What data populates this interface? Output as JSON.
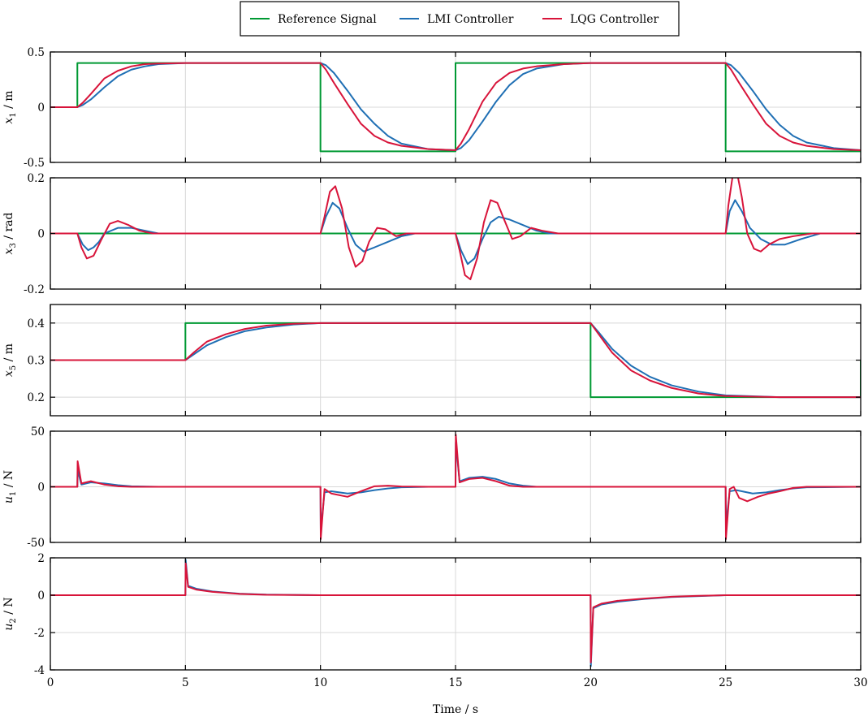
{
  "chart_data": {
    "type": "line",
    "xlabel": "Time / s",
    "xlim": [
      0,
      30
    ],
    "xticks": [
      0,
      5,
      10,
      15,
      20,
      25,
      30
    ],
    "legend": {
      "placement": "top-center",
      "entries": [
        {
          "name": "Reference Signal",
          "color": "#009933"
        },
        {
          "name": "LMI Controller",
          "color": "#1f6fb4"
        },
        {
          "name": "LQG Controller",
          "color": "#d8143a"
        }
      ]
    },
    "grid": true,
    "panels": [
      {
        "ylabel_sym": "x",
        "ylabel_sub": "1",
        "ylabel_unit": " / m",
        "ylim": [
          -0.5,
          0.5
        ],
        "yticks": [
          {
            "v": 0.5,
            "t": "0.5"
          },
          {
            "v": 0,
            "t": "0"
          },
          {
            "v": -0.5,
            "t": "-0.5"
          }
        ],
        "series": [
          {
            "name": "Reference Signal",
            "x": [
              0,
              1,
              1,
              10,
              10,
              15,
              15,
              25,
              25,
              30
            ],
            "y": [
              0,
              0,
              0.4,
              0.4,
              -0.4,
              -0.4,
              0.4,
              0.4,
              -0.4,
              -0.4
            ]
          },
          {
            "name": "LMI Controller",
            "x": [
              0,
              1,
              1.2,
              1.5,
              2,
              2.5,
              3,
              3.5,
              4,
              5,
              10,
              10.2,
              10.5,
              11,
              11.5,
              12,
              12.5,
              13,
              14,
              15,
              15.2,
              15.5,
              16,
              16.5,
              17,
              17.5,
              18,
              19,
              20,
              25,
              25.2,
              25.5,
              26,
              26.5,
              27,
              27.5,
              28,
              29,
              30
            ],
            "y": [
              0,
              0,
              0.02,
              0.07,
              0.18,
              0.28,
              0.34,
              0.37,
              0.39,
              0.4,
              0.4,
              0.38,
              0.31,
              0.15,
              -0.02,
              -0.15,
              -0.26,
              -0.33,
              -0.38,
              -0.39,
              -0.37,
              -0.3,
              -0.13,
              0.05,
              0.2,
              0.3,
              0.35,
              0.39,
              0.4,
              0.4,
              0.38,
              0.31,
              0.15,
              -0.02,
              -0.16,
              -0.26,
              -0.32,
              -0.37,
              -0.39
            ]
          },
          {
            "name": "LQG Controller",
            "x": [
              0,
              1,
              1.2,
              1.5,
              2,
              2.5,
              3,
              3.5,
              4,
              5,
              10,
              10.2,
              10.5,
              11,
              11.5,
              12,
              12.5,
              13,
              14,
              15,
              15.2,
              15.5,
              16,
              16.5,
              17,
              17.5,
              18,
              19,
              20,
              25,
              25.2,
              25.5,
              26,
              26.5,
              27,
              27.5,
              28,
              29,
              30
            ],
            "y": [
              0,
              0,
              0.04,
              0.12,
              0.26,
              0.33,
              0.37,
              0.39,
              0.395,
              0.4,
              0.4,
              0.34,
              0.22,
              0.03,
              -0.15,
              -0.26,
              -0.32,
              -0.35,
              -0.38,
              -0.39,
              -0.33,
              -0.2,
              0.05,
              0.22,
              0.31,
              0.35,
              0.37,
              0.39,
              0.4,
              0.4,
              0.34,
              0.22,
              0.03,
              -0.15,
              -0.26,
              -0.32,
              -0.35,
              -0.38,
              -0.39
            ]
          }
        ]
      },
      {
        "ylabel_sym": "x",
        "ylabel_sub": "3",
        "ylabel_unit": " / rad",
        "ylim": [
          -0.2,
          0.2
        ],
        "yticks": [
          {
            "v": 0.2,
            "t": "0.2"
          },
          {
            "v": 0,
            "t": "0"
          },
          {
            "v": -0.2,
            "t": "-0.2"
          }
        ],
        "series": [
          {
            "name": "Reference Signal",
            "x": [
              0,
              30
            ],
            "y": [
              0,
              0
            ]
          },
          {
            "name": "LMI Controller",
            "x": [
              0,
              1,
              1.2,
              1.4,
              1.6,
              1.8,
              2,
              2.5,
              3,
              3.5,
              4,
              5,
              10,
              10.2,
              10.45,
              10.7,
              11,
              11.3,
              11.6,
              12,
              12.5,
              13,
              13.5,
              14,
              15,
              15.2,
              15.45,
              15.7,
              16,
              16.3,
              16.6,
              17,
              17.5,
              18,
              18.5,
              19,
              20,
              25,
              25.15,
              25.35,
              25.6,
              25.9,
              26.3,
              26.7,
              27.2,
              27.8,
              28.5,
              30
            ],
            "y": [
              0,
              0,
              -0.04,
              -0.06,
              -0.05,
              -0.03,
              0.0,
              0.02,
              0.02,
              0.01,
              0.0,
              0,
              0,
              0.06,
              0.11,
              0.09,
              0.02,
              -0.04,
              -0.065,
              -0.05,
              -0.03,
              -0.01,
              0.0,
              0.0,
              0,
              -0.06,
              -0.11,
              -0.09,
              -0.02,
              0.04,
              0.06,
              0.05,
              0.03,
              0.01,
              0.0,
              0.0,
              0,
              0,
              0.08,
              0.12,
              0.08,
              0.02,
              -0.02,
              -0.04,
              -0.04,
              -0.02,
              0.0,
              0
            ]
          },
          {
            "name": "LQG Controller",
            "x": [
              0,
              1,
              1.15,
              1.35,
              1.6,
              1.9,
              2.2,
              2.5,
              2.9,
              3.3,
              3.8,
              4.5,
              5,
              10,
              10.15,
              10.35,
              10.55,
              10.8,
              11.05,
              11.3,
              11.55,
              11.8,
              12.1,
              12.4,
              12.8,
              13.2,
              13.8,
              15,
              15.15,
              15.35,
              15.55,
              15.8,
              16.05,
              16.3,
              16.55,
              16.8,
              17.1,
              17.4,
              17.8,
              18.2,
              18.8,
              20,
              25,
              25.1,
              25.25,
              25.42,
              25.6,
              25.8,
              26.05,
              26.3,
              26.6,
              27,
              27.5,
              28.2,
              30
            ],
            "y": [
              0,
              0,
              -0.05,
              -0.09,
              -0.08,
              -0.02,
              0.035,
              0.045,
              0.03,
              0.01,
              0.0,
              0,
              0,
              0,
              0.06,
              0.15,
              0.17,
              0.09,
              -0.05,
              -0.12,
              -0.1,
              -0.03,
              0.02,
              0.015,
              -0.01,
              0.0,
              0.0,
              0,
              -0.06,
              -0.15,
              -0.165,
              -0.09,
              0.04,
              0.12,
              0.11,
              0.05,
              -0.02,
              -0.01,
              0.02,
              0.01,
              0.0,
              0,
              0,
              0.1,
              0.2,
              0.22,
              0.13,
              0.0,
              -0.055,
              -0.065,
              -0.04,
              -0.02,
              -0.01,
              0.0,
              0
            ]
          }
        ]
      },
      {
        "ylabel_sym": "x",
        "ylabel_sub": "5",
        "ylabel_unit": " / m",
        "ylim": [
          0.15,
          0.45
        ],
        "yticks": [
          {
            "v": 0.4,
            "t": "0.4"
          },
          {
            "v": 0.3,
            "t": "0.3"
          },
          {
            "v": 0.2,
            "t": "0.2"
          }
        ],
        "series": [
          {
            "name": "Reference Signal",
            "x": [
              0,
              5,
              5,
              20,
              20,
              30,
              30
            ],
            "y": [
              0.3,
              0.3,
              0.4,
              0.4,
              0.2,
              0.2,
              0.3
            ]
          },
          {
            "name": "LMI Controller",
            "x": [
              0,
              5,
              5.3,
              5.8,
              6.5,
              7.2,
              8,
              9,
              10,
              15,
              20,
              20.3,
              20.8,
              21.5,
              22.2,
              23,
              24,
              25,
              27,
              30
            ],
            "y": [
              0.3,
              0.3,
              0.315,
              0.34,
              0.362,
              0.378,
              0.388,
              0.396,
              0.4,
              0.4,
              0.4,
              0.375,
              0.33,
              0.285,
              0.255,
              0.232,
              0.215,
              0.205,
              0.2,
              0.2
            ]
          },
          {
            "name": "LQG Controller",
            "x": [
              0,
              5,
              5.3,
              5.8,
              6.5,
              7.2,
              8,
              9,
              10,
              15,
              20,
              20.3,
              20.8,
              21.5,
              22.2,
              23,
              24,
              25,
              27,
              30
            ],
            "y": [
              0.3,
              0.3,
              0.32,
              0.35,
              0.37,
              0.384,
              0.393,
              0.398,
              0.4,
              0.4,
              0.4,
              0.37,
              0.32,
              0.272,
              0.245,
              0.225,
              0.21,
              0.203,
              0.2,
              0.2
            ]
          }
        ]
      },
      {
        "ylabel_sym": "u",
        "ylabel_sub": "1",
        "ylabel_unit": " / N",
        "ylim": [
          -50,
          50
        ],
        "yticks": [
          {
            "v": 50,
            "t": "50"
          },
          {
            "v": 0,
            "t": "0"
          },
          {
            "v": -50,
            "t": "-50"
          }
        ],
        "series": [
          {
            "name": "LMI Controller",
            "x": [
              0,
              1,
              1.01,
              1.15,
              1.5,
              2,
              2.5,
              3,
              4,
              10,
              10.01,
              10.15,
              10.4,
              11,
              11.5,
              12,
              12.5,
              13,
              14,
              15,
              15.01,
              15.15,
              15.5,
              16,
              16.5,
              17,
              17.5,
              18,
              20,
              25,
              25.01,
              25.15,
              25.4,
              26,
              26.5,
              27,
              27.5,
              28,
              30
            ],
            "y": [
              0,
              0,
              15,
              2,
              4,
              3,
              1.5,
              0.5,
              0,
              0,
              -40,
              -5,
              -4,
              -6,
              -5,
              -3,
              -1.5,
              -0.5,
              0,
              0,
              40,
              5,
              8,
              9,
              7,
              3,
              1,
              0,
              0,
              0,
              -35,
              -4,
              -3,
              -6,
              -5,
              -3,
              -1.5,
              -0.5,
              0
            ]
          },
          {
            "name": "LQG Controller",
            "x": [
              0,
              1,
              1.01,
              1.15,
              1.5,
              2,
              2.5,
              3,
              4,
              10,
              10.01,
              10.15,
              10.4,
              11,
              11.5,
              12,
              12.5,
              13,
              14,
              15,
              15.01,
              15.15,
              15.5,
              16,
              16.5,
              17,
              17.5,
              18,
              20,
              25,
              25.01,
              25.15,
              25.3,
              25.5,
              25.8,
              26.2,
              26.6,
              27,
              27.5,
              28,
              30
            ],
            "y": [
              0,
              0,
              23,
              3,
              5,
              2,
              0.5,
              0,
              0,
              0,
              -47,
              -2,
              -6,
              -9,
              -4,
              0.5,
              1,
              0.3,
              0,
              0,
              47,
              4,
              7,
              8,
              5,
              1,
              0,
              0,
              0,
              0,
              -47,
              -2,
              0,
              -10,
              -13,
              -9,
              -6,
              -4,
              -1,
              0,
              0
            ]
          }
        ]
      },
      {
        "ylabel_sym": "u",
        "ylabel_sub": "2",
        "ylabel_unit": " / N",
        "ylim": [
          -4,
          2
        ],
        "yticks": [
          {
            "v": 2,
            "t": "2"
          },
          {
            "v": 0,
            "t": "0"
          },
          {
            "v": -2,
            "t": "-2"
          },
          {
            "v": -4,
            "t": "-4"
          }
        ],
        "series": [
          {
            "name": "LMI Controller",
            "x": [
              0,
              5,
              5.01,
              5.1,
              5.4,
              6,
              7,
              8,
              10,
              20,
              20.01,
              20.1,
              20.4,
              21,
              22,
              23,
              24,
              25,
              30
            ],
            "y": [
              0,
              0,
              1.9,
              0.5,
              0.35,
              0.2,
              0.08,
              0.03,
              0,
              0,
              -3.8,
              -0.7,
              -0.5,
              -0.35,
              -0.2,
              -0.1,
              -0.05,
              0,
              0
            ]
          },
          {
            "name": "LQG Controller",
            "x": [
              0,
              5,
              5.01,
              5.1,
              5.4,
              6,
              7,
              8,
              10,
              20,
              20.01,
              20.1,
              20.4,
              21,
              22,
              23,
              24,
              25,
              30
            ],
            "y": [
              0,
              0,
              1.7,
              0.45,
              0.3,
              0.18,
              0.07,
              0.02,
              0,
              0,
              -3.6,
              -0.65,
              -0.45,
              -0.3,
              -0.18,
              -0.08,
              -0.03,
              0,
              0
            ]
          }
        ]
      }
    ]
  }
}
